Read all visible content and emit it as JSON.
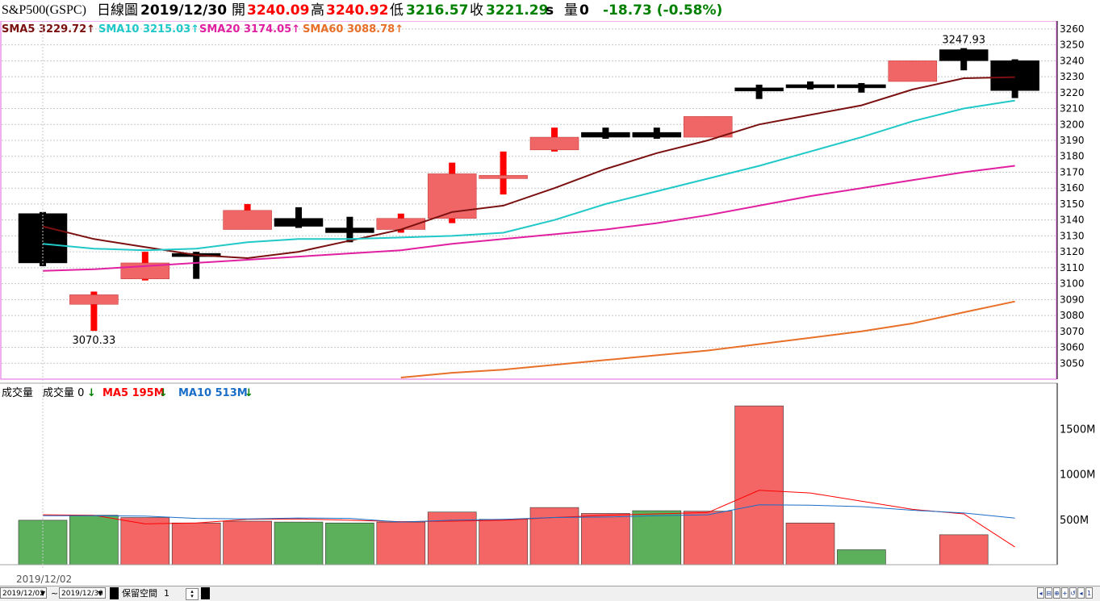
{
  "header": {
    "symbol": "S&P500(GSPC)",
    "chart_type": "日線圖",
    "date": "2019/12/30",
    "open_label": "開",
    "open": "3240.09",
    "high_label": "高",
    "high": "3240.92",
    "low_label": "低",
    "low": "3216.57",
    "close_label": "收",
    "close": "3221.29",
    "suffix": "s",
    "vol_label": "量",
    "vol": "0",
    "change": "-18.73 (-0.58%)"
  },
  "sma_legend": [
    {
      "label": "SMA5 3229.72",
      "color": "#7b1010",
      "arrow": "↑"
    },
    {
      "label": "SMA10 3215.03",
      "color": "#20c8c8",
      "arrow": "↑"
    },
    {
      "label": "SMA20 3174.05",
      "color": "#e020a0",
      "arrow": "↑"
    },
    {
      "label": "SMA60 3088.78",
      "color": "#e87028",
      "arrow": "↑"
    }
  ],
  "vol_legend": {
    "title": "成交量",
    "items": [
      {
        "label": "成交量 0",
        "color": "#000000",
        "arrow": "↓",
        "arrow_color": "#008000"
      },
      {
        "label": "MA5 195M",
        "color": "#ff0000",
        "arrow": "↓",
        "arrow_color": "#008000"
      },
      {
        "label": "MA10 513M",
        "color": "#1a6ec8",
        "arrow": "↓",
        "arrow_color": "#008000"
      }
    ]
  },
  "annotations": {
    "high": "3247.93",
    "low": "3070.33"
  },
  "x_label": "2019/12/02",
  "footer": {
    "from_date": "2019/12/02",
    "tilde": "~",
    "to_date": "2019/12/30",
    "reserve_label": "保留空間",
    "reserve_value": "1"
  },
  "colors": {
    "up": "#f06666",
    "up_wick": "#ff0000",
    "down": "#000000",
    "vol_up": "#f46666",
    "vol_down": "#5cb05c",
    "border": "#e060e0"
  },
  "chart_data": [
    {
      "type": "candlestick",
      "title": "S&P500(GSPC) 日線圖",
      "ylim": [
        3040,
        3265
      ],
      "y_ticks": [
        3050,
        3060,
        3070,
        3080,
        3090,
        3100,
        3110,
        3120,
        3130,
        3140,
        3150,
        3160,
        3170,
        3180,
        3190,
        3200,
        3210,
        3220,
        3230,
        3240,
        3250,
        3260
      ],
      "candles": [
        {
          "open": 3144,
          "high": 3145,
          "low": 3111,
          "close": 3113
        },
        {
          "open": 3087,
          "high": 3095,
          "low": 3070.33,
          "close": 3093
        },
        {
          "open": 3103,
          "high": 3120,
          "low": 3102,
          "close": 3113
        },
        {
          "open": 3119,
          "high": 3120,
          "low": 3103,
          "close": 3117
        },
        {
          "open": 3134,
          "high": 3150,
          "low": 3134,
          "close": 3146
        },
        {
          "open": 3141,
          "high": 3148,
          "low": 3135,
          "close": 3136
        },
        {
          "open": 3135,
          "high": 3142,
          "low": 3126,
          "close": 3132
        },
        {
          "open": 3134,
          "high": 3144,
          "low": 3132,
          "close": 3141
        },
        {
          "open": 3141,
          "high": 3176,
          "low": 3138,
          "close": 3169
        },
        {
          "open": 3166,
          "high": 3183,
          "low": 3156,
          "close": 3168
        },
        {
          "open": 3184,
          "high": 3198,
          "low": 3183,
          "close": 3192
        },
        {
          "open": 3195,
          "high": 3198,
          "low": 3191,
          "close": 3192
        },
        {
          "open": 3195,
          "high": 3198,
          "low": 3191,
          "close": 3192
        },
        {
          "open": 3192,
          "high": 3205,
          "low": 3192,
          "close": 3205
        },
        {
          "open": 3223,
          "high": 3225,
          "low": 3216,
          "close": 3222
        },
        {
          "open": 3225,
          "high": 3227,
          "low": 3222,
          "close": 3224
        },
        {
          "open": 3225,
          "high": 3226,
          "low": 3220,
          "close": 3223
        },
        {
          "open": 3227,
          "high": 3240,
          "low": 3227,
          "close": 3240
        },
        {
          "open": 3247,
          "high": 3247.93,
          "low": 3234,
          "close": 3240
        },
        {
          "open": 3240.09,
          "high": 3240.92,
          "low": 3216.57,
          "close": 3221.29
        }
      ],
      "series": [
        {
          "name": "SMA5",
          "color": "#7b1010",
          "values": [
            3136,
            3128,
            3123,
            3118,
            3116,
            3120,
            3127,
            3134,
            3145,
            3149,
            3160,
            3172,
            3182,
            3190,
            3200,
            3206,
            3212,
            3222,
            3229,
            3229.72
          ]
        },
        {
          "name": "SMA10",
          "color": "#20c8c8",
          "values": [
            3125,
            3122,
            3121,
            3122,
            3126,
            3128,
            3128,
            3129,
            3130,
            3132,
            3140,
            3150,
            3158,
            3166,
            3174,
            3183,
            3192,
            3202,
            3210,
            3215.03
          ]
        },
        {
          "name": "SMA20",
          "color": "#e020a0",
          "values": [
            3108,
            3109,
            3111,
            3113,
            3115,
            3117,
            3119,
            3121,
            3125,
            3128,
            3131,
            3134,
            3138,
            3143,
            3149,
            3155,
            3160,
            3165,
            3170,
            3174.05
          ]
        },
        {
          "name": "SMA60",
          "color": "#e87028",
          "values": [
            null,
            null,
            null,
            null,
            null,
            null,
            null,
            3041,
            3044,
            3046,
            3049,
            3052,
            3055,
            3058,
            3062,
            3066,
            3070,
            3075,
            3082,
            3088.78
          ]
        }
      ]
    },
    {
      "type": "bar",
      "title": "成交量",
      "ylim": [
        0,
        2000
      ],
      "y_ticks": [
        {
          "value": 500,
          "label": "500M"
        },
        {
          "value": 1000,
          "label": "1000M"
        },
        {
          "value": 1500,
          "label": "1500M"
        }
      ],
      "values": [
        490,
        545,
        520,
        460,
        480,
        470,
        460,
        470,
        580,
        500,
        630,
        565,
        595,
        590,
        1750,
        460,
        165,
        0,
        330,
        0
      ],
      "up": [
        false,
        false,
        true,
        true,
        true,
        false,
        false,
        true,
        true,
        true,
        true,
        true,
        false,
        true,
        true,
        true,
        false,
        true,
        true,
        true
      ],
      "series": [
        {
          "name": "MA5",
          "color": "#ff0000",
          "values": [
            550,
            545,
            450,
            460,
            500,
            505,
            490,
            475,
            480,
            490,
            520,
            545,
            560,
            575,
            820,
            790,
            700,
            610,
            560,
            195
          ]
        },
        {
          "name": "MA10",
          "color": "#1a6ec8",
          "values": [
            540,
            540,
            535,
            510,
            505,
            515,
            510,
            470,
            490,
            500,
            520,
            525,
            540,
            550,
            660,
            655,
            640,
            600,
            570,
            513
          ]
        }
      ]
    }
  ]
}
